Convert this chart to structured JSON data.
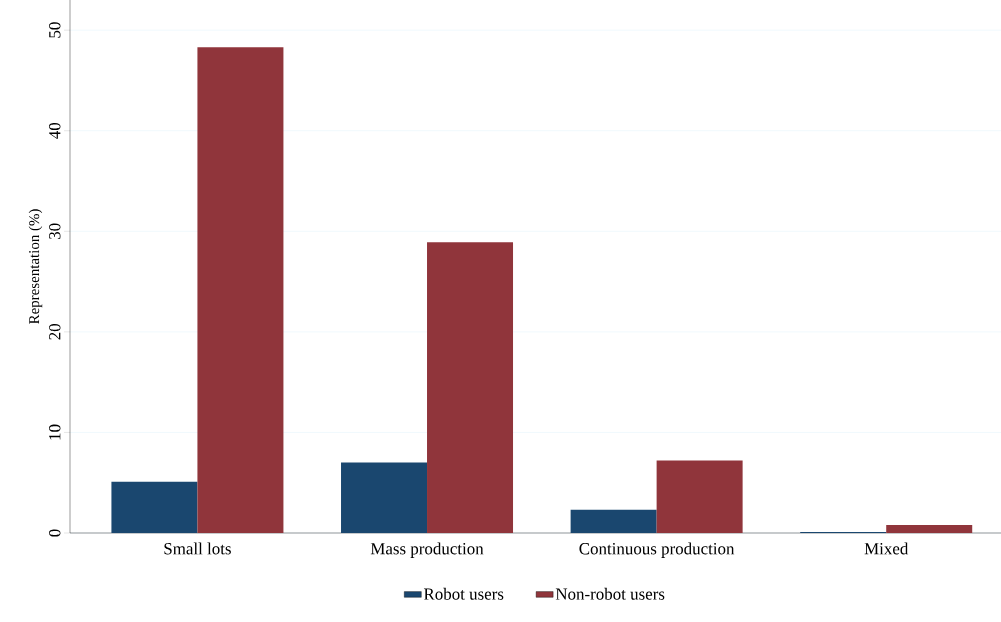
{
  "chart_data": {
    "type": "bar",
    "ylabel": "Representation (%)",
    "categories": [
      "Small lots",
      "Mass production",
      "Continuous production",
      "Mixed"
    ],
    "series": [
      {
        "name": "Robot users",
        "color": "#1a476f",
        "values": [
          5.1,
          7.0,
          2.3,
          0.1
        ]
      },
      {
        "name": "Non-robot users",
        "color": "#90353b",
        "values": [
          48.3,
          28.9,
          7.2,
          0.8
        ]
      }
    ],
    "ylim": [
      0,
      53
    ],
    "yticks": [
      0,
      10,
      20,
      30,
      40,
      50
    ],
    "grid": "y",
    "legend": "bottom"
  }
}
